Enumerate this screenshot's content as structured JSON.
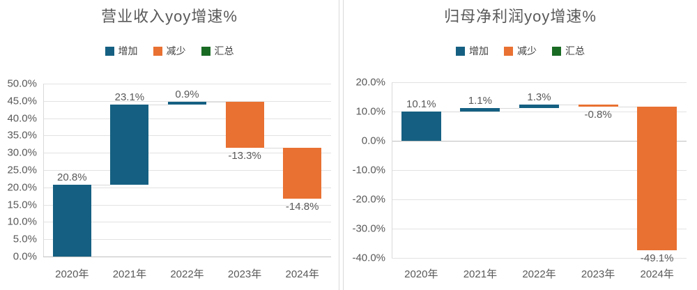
{
  "colors": {
    "increase": "#156082",
    "decrease": "#e97132",
    "total": "#196b24",
    "gridline": "#e2e2e2",
    "zero_line": "#bfbfbf",
    "axis_line": "#d9d9d9",
    "connector": "#d9d9d9",
    "text": "#595959",
    "divider": "#d9d9d9"
  },
  "chart_data": [
    {
      "type": "bar",
      "subtype": "waterfall",
      "title": "营业收入yoy增速%",
      "legend": [
        {
          "label": "增加",
          "color": "#156082"
        },
        {
          "label": "减少",
          "color": "#e97132"
        },
        {
          "label": "汇总",
          "color": "#196b24"
        }
      ],
      "legend_position": "top",
      "grid": true,
      "categories": [
        "2020年",
        "2021年",
        "2022年",
        "2023年",
        "2024年"
      ],
      "values": [
        20.8,
        23.1,
        0.9,
        -13.3,
        -14.8
      ],
      "data_labels": [
        "20.8%",
        "23.1%",
        "0.9%",
        "-13.3%",
        "-14.8%"
      ],
      "cumulative": [
        20.8,
        43.9,
        44.8,
        31.5,
        16.7
      ],
      "ylim": [
        0,
        50
      ],
      "ytick_step": 5,
      "ytick_labels": [
        "50.0%",
        "45.0%",
        "40.0%",
        "35.0%",
        "30.0%",
        "25.0%",
        "20.0%",
        "15.0%",
        "10.0%",
        "5.0%",
        "0.0%"
      ]
    },
    {
      "type": "bar",
      "subtype": "waterfall",
      "title": "归母净利润yoy增速%",
      "legend": [
        {
          "label": "增加",
          "color": "#156082"
        },
        {
          "label": "减少",
          "color": "#e97132"
        },
        {
          "label": "汇总",
          "color": "#196b24"
        }
      ],
      "legend_position": "top",
      "grid": true,
      "categories": [
        "2020年",
        "2021年",
        "2022年",
        "2023年",
        "2024年"
      ],
      "values": [
        10.1,
        1.1,
        1.3,
        -0.8,
        -49.1
      ],
      "data_labels": [
        "10.1%",
        "1.1%",
        "1.3%",
        "-0.8%",
        "-49.1%"
      ],
      "cumulative": [
        10.1,
        11.2,
        12.5,
        11.7,
        -37.4
      ],
      "ylim": [
        -40,
        20
      ],
      "ytick_step": 10,
      "ytick_labels": [
        "20.0%",
        "10.0%",
        "0.0%",
        "-10.0%",
        "-20.0%",
        "-30.0%",
        "-40.0%"
      ]
    }
  ]
}
